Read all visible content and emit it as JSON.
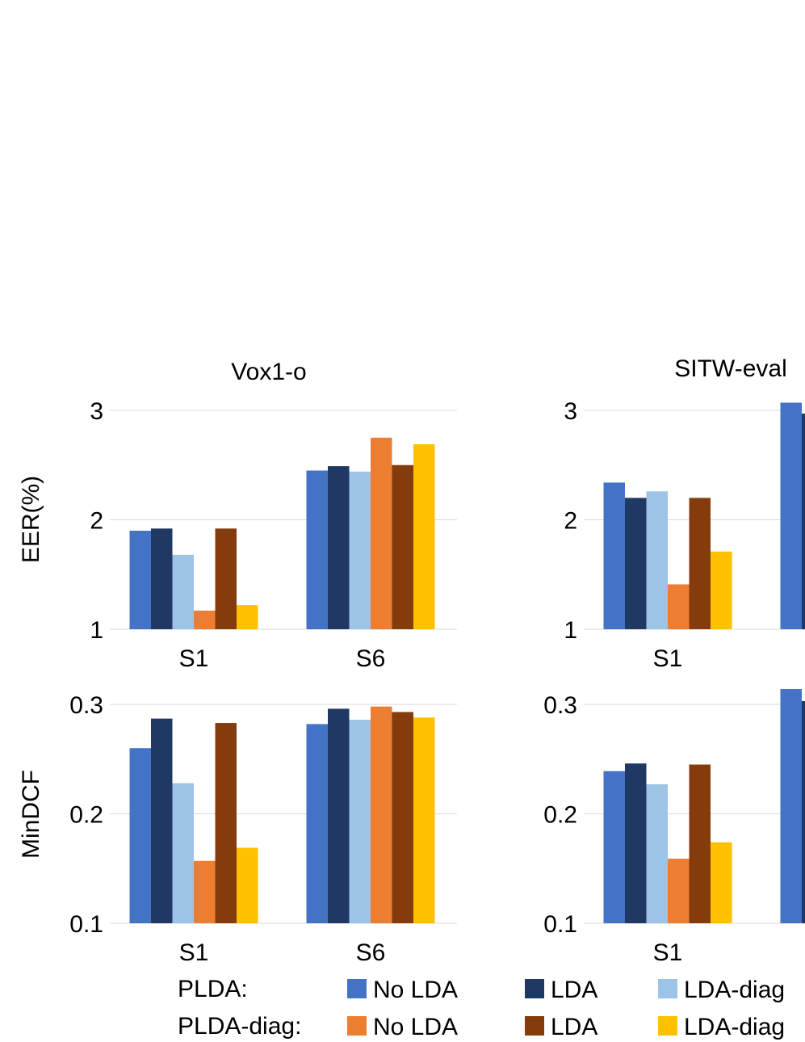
{
  "colors": {
    "plda_no_lda": "#4472C4",
    "plda_lda": "#203864",
    "plda_lda_diag": "#9DC3E6",
    "pldadiag_no_lda": "#ED7D31",
    "pldadiag_lda": "#843C0C",
    "pldadiag_lda_diag": "#FFC000",
    "grid": "#D9D9D9"
  },
  "legend": {
    "row_labels": [
      "PLDA:",
      "PLDA-diag:"
    ],
    "entries": [
      [
        "No LDA",
        "LDA",
        "LDA-diag"
      ],
      [
        "No LDA",
        "LDA",
        "LDA-diag"
      ]
    ]
  },
  "chart_data": [
    {
      "type": "bar",
      "title": "Vox1-o",
      "ylabel": "EER(%)",
      "ylim": [
        1,
        3
      ],
      "yticks": [
        "1",
        "2",
        "3"
      ],
      "categories": [
        "S1",
        "S6"
      ],
      "series": [
        {
          "name": "PLDA: No LDA",
          "values": [
            1.9,
            2.45
          ]
        },
        {
          "name": "PLDA: LDA",
          "values": [
            1.92,
            2.49
          ]
        },
        {
          "name": "PLDA: LDA-diag",
          "values": [
            1.68,
            2.44
          ]
        },
        {
          "name": "PLDA-diag: No LDA",
          "values": [
            1.17,
            2.75
          ]
        },
        {
          "name": "PLDA-diag: LDA",
          "values": [
            1.92,
            2.5
          ]
        },
        {
          "name": "PLDA-diag: LDA-diag",
          "values": [
            1.22,
            2.69
          ]
        }
      ]
    },
    {
      "type": "bar",
      "title": "SITW-eval",
      "ylabel": "",
      "ylim": [
        1,
        3
      ],
      "yticks": [
        "1",
        "2",
        "3"
      ],
      "categories": [
        "S1",
        ""
      ],
      "series": [
        {
          "name": "PLDA: No LDA",
          "values": [
            2.34,
            3.07
          ]
        },
        {
          "name": "PLDA: LDA",
          "values": [
            2.2,
            2.97
          ]
        },
        {
          "name": "PLDA: LDA-diag",
          "values": [
            2.26,
            null
          ]
        },
        {
          "name": "PLDA-diag: No LDA",
          "values": [
            1.41,
            null
          ]
        },
        {
          "name": "PLDA-diag: LDA",
          "values": [
            2.2,
            null
          ]
        },
        {
          "name": "PLDA-diag: LDA-diag",
          "values": [
            1.71,
            null
          ]
        }
      ]
    },
    {
      "type": "bar",
      "title": "",
      "ylabel": "MinDCF",
      "ylim": [
        0.1,
        0.3
      ],
      "yticks": [
        "0.1",
        "0.2",
        "0.3"
      ],
      "categories": [
        "S1",
        "S6"
      ],
      "series": [
        {
          "name": "PLDA: No LDA",
          "values": [
            0.26,
            0.282
          ]
        },
        {
          "name": "PLDA: LDA",
          "values": [
            0.287,
            0.296
          ]
        },
        {
          "name": "PLDA: LDA-diag",
          "values": [
            0.228,
            0.286
          ]
        },
        {
          "name": "PLDA-diag: No LDA",
          "values": [
            0.157,
            0.298
          ]
        },
        {
          "name": "PLDA-diag: LDA",
          "values": [
            0.283,
            0.293
          ]
        },
        {
          "name": "PLDA-diag: LDA-diag",
          "values": [
            0.169,
            0.288
          ]
        }
      ]
    },
    {
      "type": "bar",
      "title": "",
      "ylabel": "",
      "ylim": [
        0.1,
        0.3
      ],
      "yticks": [
        "0.1",
        "0.2",
        "0.3"
      ],
      "categories": [
        "S1",
        ""
      ],
      "series": [
        {
          "name": "PLDA: No LDA",
          "values": [
            0.239,
            0.314
          ]
        },
        {
          "name": "PLDA: LDA",
          "values": [
            0.246,
            0.303
          ]
        },
        {
          "name": "PLDA: LDA-diag",
          "values": [
            0.227,
            null
          ]
        },
        {
          "name": "PLDA-diag: No LDA",
          "values": [
            0.159,
            null
          ]
        },
        {
          "name": "PLDA-diag: LDA",
          "values": [
            0.245,
            null
          ]
        },
        {
          "name": "PLDA-diag: LDA-diag",
          "values": [
            0.174,
            null
          ]
        }
      ]
    }
  ]
}
